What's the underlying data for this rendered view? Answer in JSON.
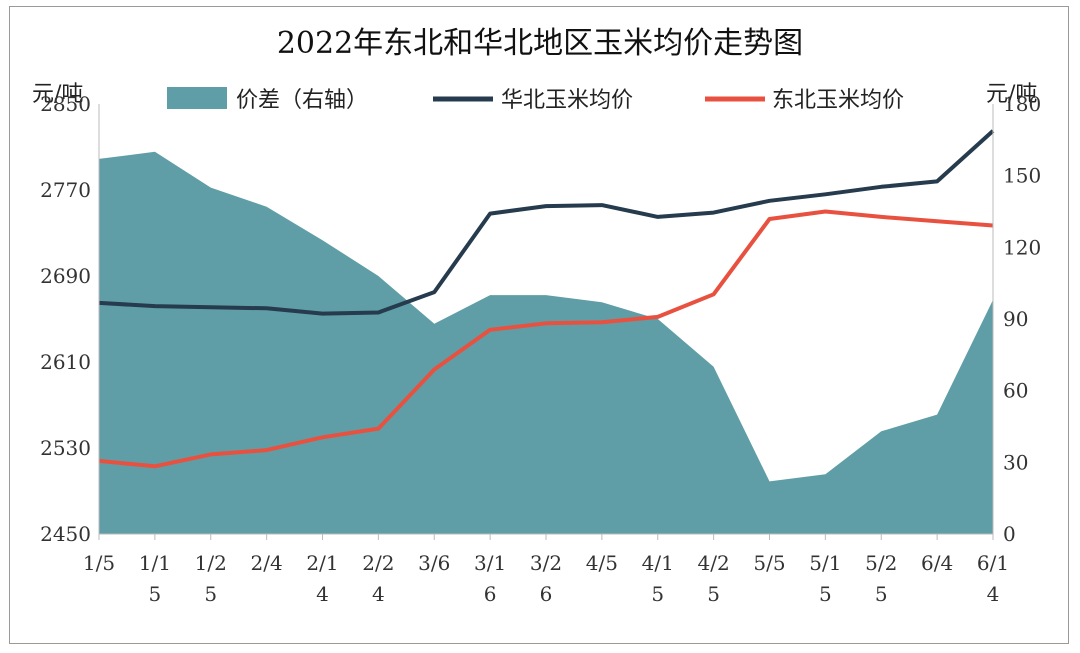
{
  "chart_data": {
    "type": "line",
    "title": "2022年东北和华北地区玉米均价走势图",
    "y_left_label": "元/吨",
    "y_right_label": "元/吨",
    "y_left_range": [
      2450,
      2850
    ],
    "y_left_ticks": [
      2450,
      2530,
      2610,
      2690,
      2770,
      2850
    ],
    "y_right_range": [
      0,
      180
    ],
    "y_right_ticks": [
      0,
      30,
      60,
      90,
      120,
      150,
      180
    ],
    "x_tick_labels": [
      "1/5",
      "1/15",
      "1/25",
      "2/4",
      "2/14",
      "2/24",
      "3/6",
      "3/16",
      "3/26",
      "4/5",
      "4/15",
      "4/25",
      "5/5",
      "5/15",
      "5/25",
      "6/4",
      "6/14"
    ],
    "x": [
      "1/5",
      "1/15",
      "1/25",
      "2/4",
      "2/14",
      "2/24",
      "3/6",
      "3/16",
      "3/26",
      "4/5",
      "4/15",
      "4/25",
      "5/5",
      "5/15",
      "5/25",
      "6/4",
      "6/14"
    ],
    "series": [
      {
        "name": "价差（右轴）",
        "type": "area",
        "axis": "right",
        "color": "#5f9ea6",
        "values": [
          157,
          160,
          145,
          137,
          123,
          108,
          88,
          100,
          100,
          97,
          90,
          70,
          22,
          25,
          43,
          50,
          98
        ]
      },
      {
        "name": "华北玉米均价",
        "type": "line",
        "axis": "left",
        "color": "#263b4d",
        "values": [
          2665,
          2662,
          2661,
          2660,
          2655,
          2656,
          2675,
          2748,
          2755,
          2756,
          2745,
          2749,
          2760,
          2766,
          2773,
          2778,
          2825
        ]
      },
      {
        "name": "东北玉米均价",
        "type": "line",
        "axis": "left",
        "color": "#e8513f",
        "values": [
          2518,
          2513,
          2524,
          2528,
          2540,
          2548,
          2603,
          2640,
          2646,
          2647,
          2652,
          2673,
          2743,
          2750,
          2745,
          2741,
          2737
        ]
      }
    ],
    "legend_position": "top",
    "grid": false
  }
}
